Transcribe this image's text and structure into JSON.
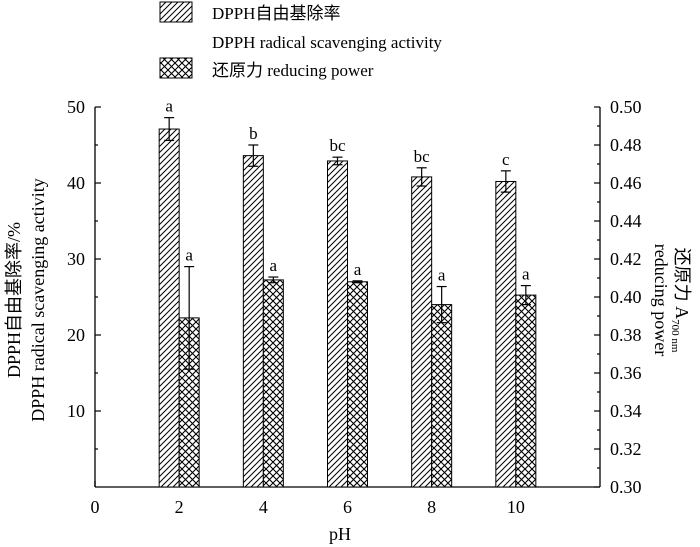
{
  "legend": {
    "dpph_zh": "DPPH自由基除率",
    "dpph_en": "DPPH radical scavenging activity",
    "reducing": "还原力 reducing power"
  },
  "axes": {
    "x_label": "pH",
    "y_left_label_zh": "DPPH自由基除率/%",
    "y_left_label_en": "DPPH radical scavenging activity",
    "y_right_label_zh": "还原力 A",
    "y_right_label_sub": "700 nm",
    "y_right_label_en": "reducing power"
  },
  "chart_data": {
    "type": "bar",
    "categories": [
      "2",
      "4",
      "6",
      "8",
      "10"
    ],
    "x_ticks": [
      "0",
      "2",
      "4",
      "6",
      "8",
      "10"
    ],
    "xlim": [
      0,
      12
    ],
    "y_left": {
      "ylim": [
        0,
        50
      ],
      "ticks": [
        "10",
        "20",
        "30",
        "40",
        "50"
      ]
    },
    "y_right": {
      "ylim": [
        0.3,
        0.5
      ],
      "ticks": [
        "0.30",
        "0.32",
        "0.34",
        "0.36",
        "0.38",
        "0.40",
        "0.42",
        "0.44",
        "0.46",
        "0.48",
        "0.50"
      ]
    },
    "series": [
      {
        "name": "DPPH自由基除率 DPPH radical scavenging activity",
        "axis": "left",
        "pattern": "diagonal-hatch",
        "x": [
          2,
          4,
          6,
          8,
          10
        ],
        "values": [
          47.1,
          43.6,
          42.9,
          40.8,
          40.2
        ],
        "errors": [
          1.5,
          1.4,
          0.5,
          1.2,
          1.4
        ],
        "labels": [
          "a",
          "b",
          "bc",
          "bc",
          "c"
        ]
      },
      {
        "name": "还原力 reducing power",
        "axis": "right",
        "pattern": "cross-hatch",
        "x": [
          2,
          4,
          6,
          8,
          10
        ],
        "values": [
          0.389,
          0.409,
          0.408,
          0.396,
          0.401
        ],
        "errors": [
          0.027,
          0.0015,
          0.0005,
          0.0095,
          0.005
        ],
        "labels": [
          "a",
          "a",
          "a",
          "a",
          "a"
        ]
      }
    ]
  }
}
